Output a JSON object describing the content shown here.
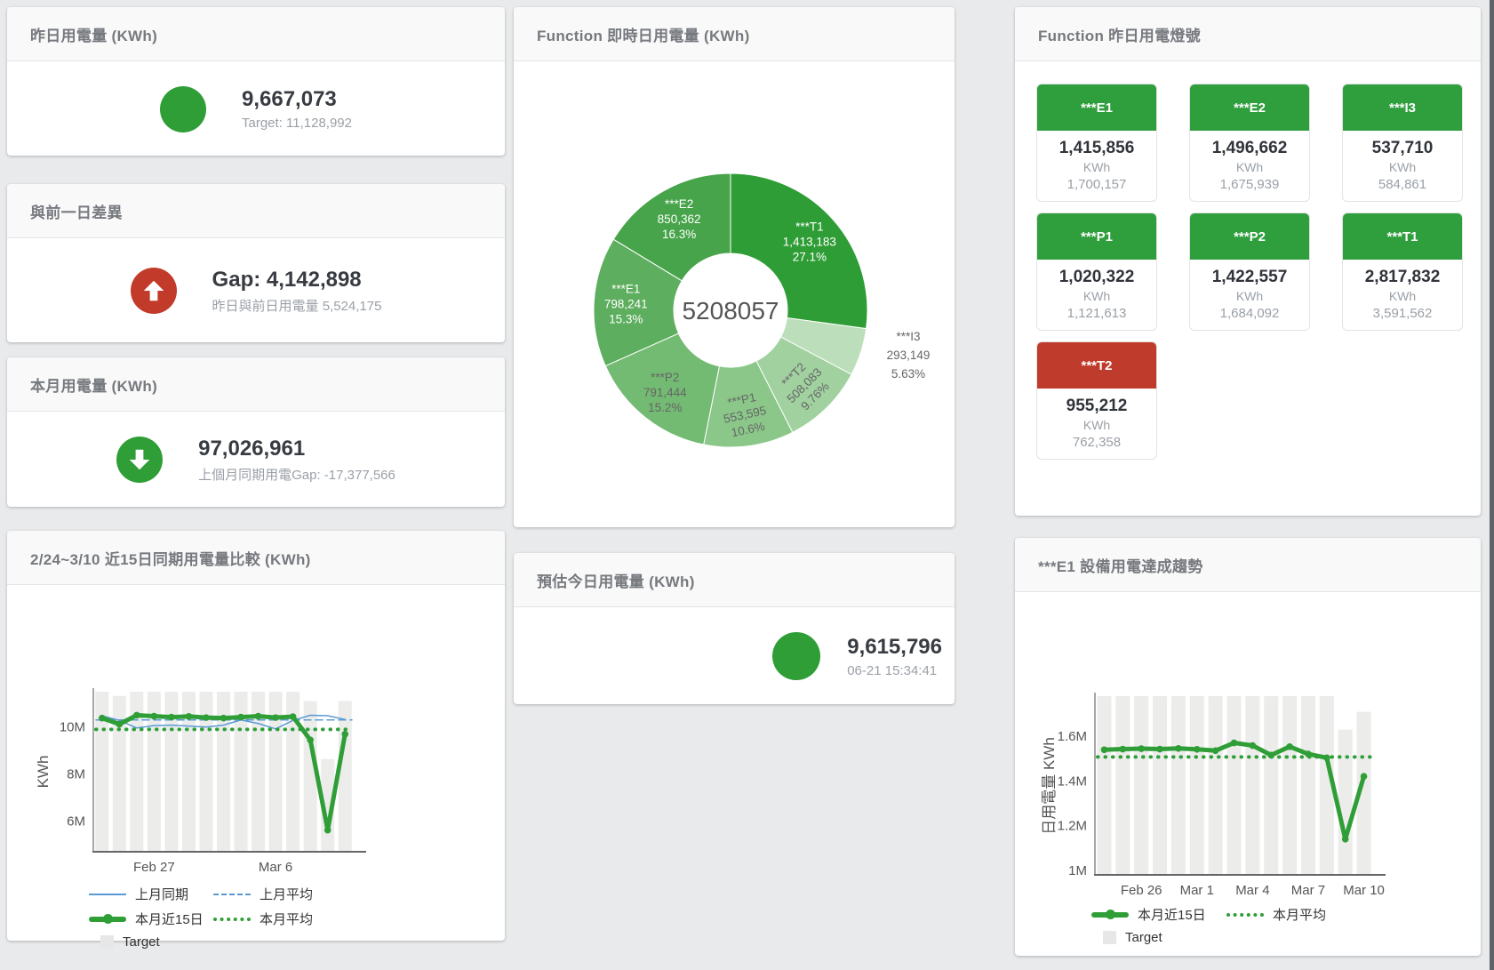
{
  "page": {
    "background": "#e9eaec",
    "scrollbar_color": "#606367"
  },
  "colors": {
    "ok": "#2f9e3d",
    "over": "#bf3b2c",
    "green": "#2f9e37",
    "red": "#c23b2a",
    "blue": "#5b9bd5",
    "target_bar": "#ececeb",
    "legend_target": "#e7e7e7"
  },
  "cards": {
    "yesterday": {
      "title": "昨日用電量 (KWh)",
      "value": "9,667,073",
      "sub": "Target: 11,128,992",
      "icon": "green-circle"
    },
    "diff": {
      "title": "與前一日差異",
      "value": "Gap: 4,142,898",
      "sub": "昨日與前日用電量 5,524,175",
      "icon": "red-circle-up-arrow"
    },
    "month": {
      "title": "本月用電量 (KWh)",
      "value": "97,026,961",
      "sub": "上個月同期用電Gap: -17,377,566",
      "icon": "green-circle-down-arrow"
    },
    "estimate": {
      "title": "預估今日用電量 (KWh)",
      "value": "9,615,796",
      "sub": "06-21 15:34:41",
      "icon": "green-circle"
    },
    "lights": {
      "title": "Function 昨日用電燈號"
    }
  },
  "lights_tiles": [
    {
      "name": "***E1",
      "value": "1,415,856",
      "unit": "KWh",
      "target": "1,700,157",
      "status": "ok"
    },
    {
      "name": "***E2",
      "value": "1,496,662",
      "unit": "KWh",
      "target": "1,675,939",
      "status": "ok"
    },
    {
      "name": "***I3",
      "value": "537,710",
      "unit": "KWh",
      "target": "584,861",
      "status": "ok"
    },
    {
      "name": "***P1",
      "value": "1,020,322",
      "unit": "KWh",
      "target": "1,121,613",
      "status": "ok"
    },
    {
      "name": "***P2",
      "value": "1,422,557",
      "unit": "KWh",
      "target": "1,684,092",
      "status": "ok"
    },
    {
      "name": "***T1",
      "value": "2,817,832",
      "unit": "KWh",
      "target": "3,591,562",
      "status": "ok"
    },
    {
      "name": "***T2",
      "value": "955,212",
      "unit": "KWh",
      "target": "762,358",
      "status": "over"
    }
  ],
  "chart_data": [
    {
      "type": "pie",
      "title": "Function 即時日用電量 (KWh)",
      "center_total": "5208057",
      "slices": [
        {
          "name": "***T1",
          "value": 1413183,
          "pct": "27.1%",
          "color": "#2f9d36",
          "label_color": "#ffffff"
        },
        {
          "name": "***I3",
          "value": 293149,
          "pct": "5.63%",
          "color": "#bcdeba",
          "label_color": "#666666",
          "label_outside": true
        },
        {
          "name": "***T2",
          "value": 508083,
          "pct": "9.76%",
          "color": "#a0d19f",
          "label_color": "#666666",
          "label_rotate": -45
        },
        {
          "name": "***P1",
          "value": 553595,
          "pct": "10.6%",
          "color": "#8ac789",
          "label_color": "#666666",
          "label_rotate": -12
        },
        {
          "name": "***P2",
          "value": 791444,
          "pct": "15.2%",
          "color": "#73ba72",
          "label_color": "#666666"
        },
        {
          "name": "***E1",
          "value": 798241,
          "pct": "15.3%",
          "color": "#5dae5e",
          "label_color": "#ffffff"
        },
        {
          "name": "***E2",
          "value": 850362,
          "pct": "16.3%",
          "color": "#48a44b",
          "label_color": "#ffffff"
        }
      ]
    },
    {
      "type": "line",
      "title": "2/24~3/10 近15日同期用電量比較 (KWh)",
      "ylabel": "KWh",
      "ylim": [
        4700000,
        11500000
      ],
      "yticks": [
        {
          "value": 6000000,
          "label": "6M"
        },
        {
          "value": 8000000,
          "label": "8M"
        },
        {
          "value": 10000000,
          "label": "10M"
        }
      ],
      "xticks": [
        {
          "index": 3,
          "label": "Feb 27"
        },
        {
          "index": 10,
          "label": "Mar 6"
        }
      ],
      "target": {
        "name": "Target",
        "color": "#ececeb",
        "values": [
          11500000,
          11320000,
          11500000,
          11500000,
          11500000,
          11500000,
          11500000,
          11500000,
          11500000,
          11500000,
          11500000,
          11500000,
          11100000,
          8640000,
          11100000
        ]
      },
      "series": [
        {
          "name": "上月同期",
          "style": "solid",
          "width": 1.5,
          "color": "#5b9bd5",
          "values": [
            10480000,
            10280000,
            9960000,
            10060000,
            10080000,
            10040000,
            10000000,
            10080000,
            10300000,
            10150000,
            9920000,
            10280000,
            10500000,
            10480000,
            10320000
          ]
        },
        {
          "name": "上月平均",
          "style": "dashed",
          "width": 1.5,
          "color": "#5b9bd5",
          "constant": 10300000
        },
        {
          "name": "本月近15日",
          "style": "solid",
          "width": 5,
          "color": "#2f9e37",
          "marker": true,
          "values": [
            10380000,
            10120000,
            10500000,
            10460000,
            10420000,
            10450000,
            10400000,
            10380000,
            10420000,
            10460000,
            10400000,
            10440000,
            9450000,
            5620000,
            9700000
          ]
        },
        {
          "name": "本月平均",
          "style": "dotted",
          "width": 4,
          "color": "#2f9e37",
          "constant": 9900000
        }
      ],
      "legend": [
        [
          "上月同期",
          "上月平均"
        ],
        [
          "本月近15日",
          "本月平均"
        ],
        [
          "Target"
        ]
      ]
    },
    {
      "type": "line",
      "title": "***E1 設備用電達成趨勢",
      "ylabel": "日用電量 KWh",
      "ylim": [
        980000,
        1780000
      ],
      "yticks": [
        {
          "value": 1000000,
          "label": "1M"
        },
        {
          "value": 1200000,
          "label": "1.2M"
        },
        {
          "value": 1400000,
          "label": "1.4M"
        },
        {
          "value": 1600000,
          "label": "1.6M"
        }
      ],
      "xticks": [
        {
          "index": 2,
          "label": "Feb 26"
        },
        {
          "index": 5,
          "label": "Mar 1"
        },
        {
          "index": 8,
          "label": "Mar 4"
        },
        {
          "index": 11,
          "label": "Mar 7"
        },
        {
          "index": 14,
          "label": "Mar 10"
        }
      ],
      "target": {
        "name": "Target",
        "color": "#ececeb",
        "values": [
          1780000,
          1780000,
          1780000,
          1780000,
          1780000,
          1780000,
          1780000,
          1780000,
          1780000,
          1780000,
          1780000,
          1780000,
          1780000,
          1630000,
          1710000
        ]
      },
      "series": [
        {
          "name": "本月近15日",
          "style": "solid",
          "width": 5,
          "color": "#2f9e37",
          "marker": true,
          "values": [
            1540000,
            1543000,
            1545000,
            1543000,
            1546000,
            1542000,
            1536000,
            1571000,
            1559000,
            1516000,
            1554000,
            1521000,
            1504000,
            1140000,
            1421000
          ]
        },
        {
          "name": "本月平均",
          "style": "dotted",
          "width": 4,
          "color": "#2f9e37",
          "constant": 1508000
        }
      ],
      "legend": [
        [
          "本月近15日",
          "本月平均"
        ],
        [
          "Target"
        ]
      ]
    }
  ]
}
